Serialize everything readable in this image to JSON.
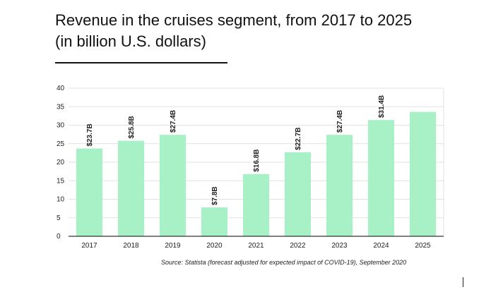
{
  "chart_data": {
    "type": "bar",
    "title_lines": [
      "Revenue in the cruises segment, from 2017 to 2025",
      "(in billion U.S. dollars)"
    ],
    "categories": [
      "2017",
      "2018",
      "2019",
      "2020",
      "2021",
      "2022",
      "2023",
      "2024",
      "2025"
    ],
    "values": [
      23.7,
      25.8,
      27.4,
      7.8,
      16.8,
      22.7,
      27.4,
      31.4,
      33.6
    ],
    "data_labels": [
      "$23.7B",
      "$25.8B",
      "$27.4B",
      "$7.8B",
      "$16.8B",
      "$22.7B",
      "$27.4B",
      "$31.4B",
      ""
    ],
    "y_ticks": [
      0,
      5,
      10,
      15,
      20,
      25,
      30,
      35,
      40
    ],
    "ylim": [
      0,
      40
    ],
    "xlabel": "",
    "ylabel": "",
    "grid": true,
    "legend": "none",
    "bar_color": "#a8f0c6",
    "grid_color": "#e2e2e2",
    "axis_color": "#333333"
  },
  "source_note": "Source: Statista (forecast adjusted for expected impact of COVID-19), September 2020"
}
